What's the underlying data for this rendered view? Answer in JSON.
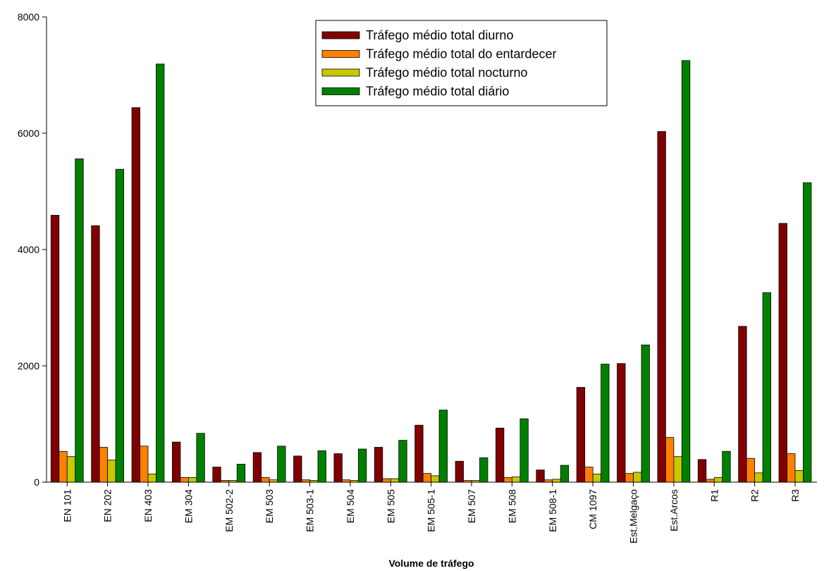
{
  "chart_data": {
    "type": "bar",
    "title": "",
    "xlabel": "Volume de tráfego",
    "ylabel": "",
    "ylim": [
      0,
      8000
    ],
    "yticks": [
      0,
      2000,
      4000,
      6000,
      8000
    ],
    "grid": false,
    "legend_position": "top-center",
    "categories": [
      "EN 101",
      "EN 202",
      "EN 403",
      "EM 304",
      "EM 502-2",
      "EM 503",
      "EM 503-1",
      "EM 504",
      "EM 505",
      "EM 505-1",
      "EM 507",
      "EM 508",
      "EM 508-1",
      "CM 1097",
      "Est.Melgaço",
      "Est.Arcos",
      "R1",
      "R2",
      "R3"
    ],
    "series": [
      {
        "name": "Tráfego médio total diurno",
        "color": "#800000",
        "values": [
          4590,
          4410,
          6440,
          690,
          260,
          510,
          450,
          490,
          600,
          980,
          360,
          930,
          210,
          1630,
          2040,
          6030,
          390,
          2680,
          4450
        ]
      },
      {
        "name": "Tráfego médio total do entardecer",
        "color": "#ff8000",
        "values": [
          530,
          600,
          620,
          80,
          30,
          80,
          40,
          40,
          60,
          150,
          30,
          80,
          40,
          260,
          150,
          770,
          50,
          410,
          490
        ]
      },
      {
        "name": "Tráfego médio total nocturno",
        "color": "#c8c800",
        "values": [
          440,
          380,
          140,
          80,
          30,
          40,
          30,
          30,
          60,
          110,
          30,
          90,
          50,
          140,
          170,
          440,
          80,
          160,
          200
        ]
      },
      {
        "name": "Tráfego médio total diário",
        "color": "#008000",
        "values": [
          5560,
          5380,
          7190,
          840,
          310,
          620,
          540,
          570,
          720,
          1240,
          420,
          1090,
          290,
          2030,
          2360,
          7250,
          530,
          3260,
          5150
        ]
      }
    ]
  }
}
